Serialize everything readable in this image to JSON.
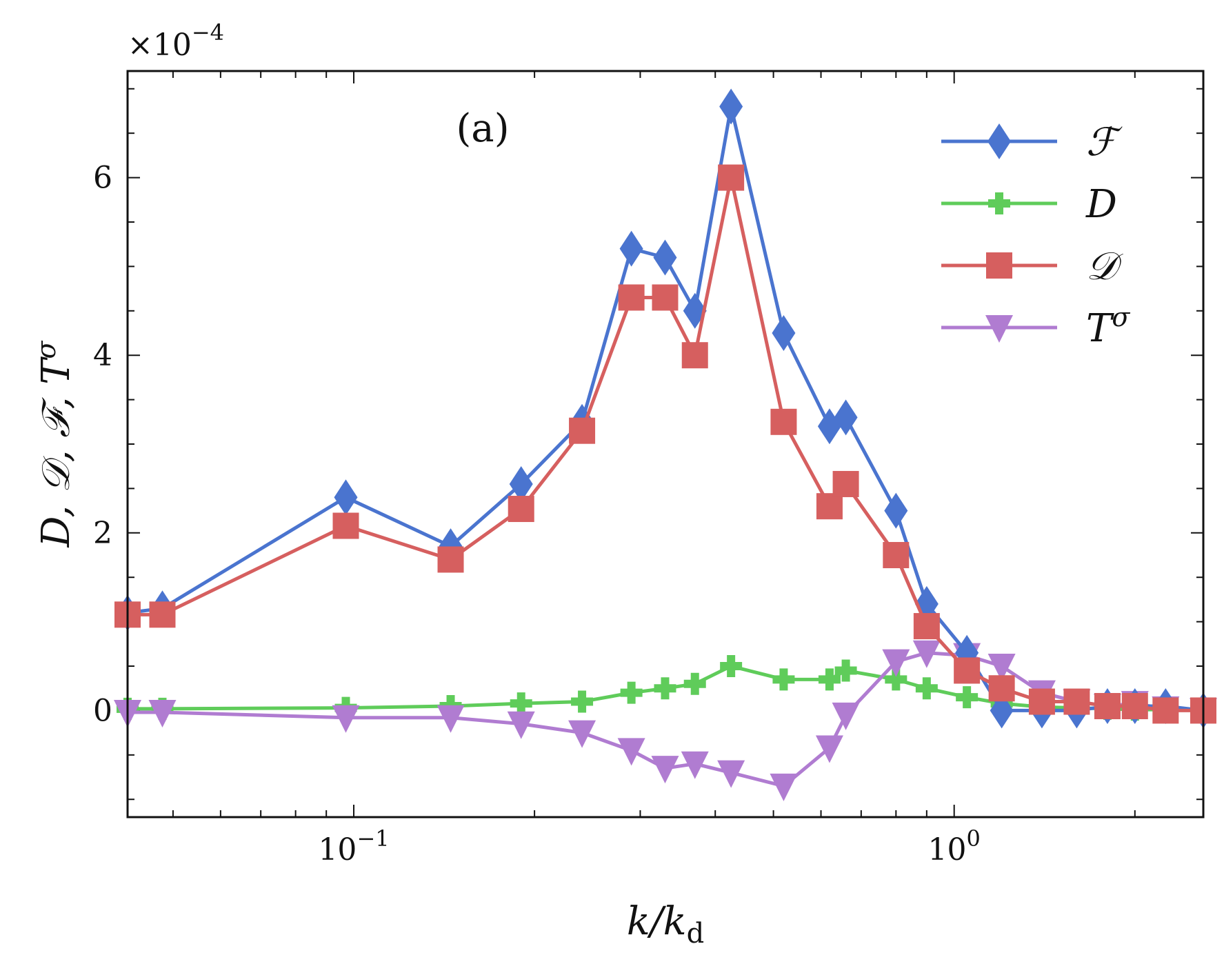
{
  "chart_data": {
    "type": "line",
    "panel_label": "(a)",
    "xscale": "log",
    "xlabel_main": "k/k",
    "xlabel_sub": "d",
    "ylabel": "D, 𝒟, ℱ, T",
    "ylabel_sup": "σ",
    "y_multiplier": {
      "base": "×10",
      "exp": "−4"
    },
    "xlim": [
      0.042,
      2.6
    ],
    "ylim": [
      -1.2,
      7.2
    ],
    "xticks": [
      {
        "value": 0.1,
        "base": "10",
        "exp": "−1"
      },
      {
        "value": 1.0,
        "base": "10",
        "exp": "0"
      }
    ],
    "yticks": [
      {
        "value": 0,
        "label": "0"
      },
      {
        "value": 2,
        "label": "2"
      },
      {
        "value": 4,
        "label": "4"
      },
      {
        "value": 6,
        "label": "6"
      }
    ],
    "legend_position": "top-right",
    "series": [
      {
        "name": "ℱ",
        "color": "#4a74cf",
        "marker": "diamond",
        "x": [
          0.042,
          0.048,
          0.097,
          0.145,
          0.19,
          0.24,
          0.29,
          0.33,
          0.37,
          0.425,
          0.52,
          0.62,
          0.66,
          0.8,
          0.9,
          1.05,
          1.2,
          1.4,
          1.6,
          1.8,
          2.0,
          2.25,
          2.6
        ],
        "values": [
          1.1,
          1.15,
          2.4,
          1.85,
          2.55,
          3.25,
          5.2,
          5.1,
          4.5,
          6.8,
          4.25,
          3.2,
          3.3,
          2.25,
          1.2,
          0.65,
          0.0,
          0.0,
          0.0,
          0.05,
          0.05,
          0.05,
          0.0
        ]
      },
      {
        "name": "D",
        "color": "#5fcc5a",
        "marker": "plus",
        "x": [
          0.042,
          0.048,
          0.097,
          0.145,
          0.19,
          0.24,
          0.29,
          0.33,
          0.37,
          0.425,
          0.52,
          0.62,
          0.66,
          0.8,
          0.9,
          1.05,
          1.2,
          1.4,
          1.6,
          1.8,
          2.0,
          2.25,
          2.6
        ],
        "values": [
          0.02,
          0.02,
          0.03,
          0.05,
          0.08,
          0.1,
          0.2,
          0.25,
          0.3,
          0.5,
          0.35,
          0.35,
          0.45,
          0.35,
          0.25,
          0.15,
          0.08,
          0.04,
          0.03,
          0.02,
          0.01,
          0.01,
          0.01
        ]
      },
      {
        "name": "𝒟",
        "color": "#d65f5f",
        "marker": "square",
        "x": [
          0.042,
          0.048,
          0.097,
          0.145,
          0.19,
          0.24,
          0.29,
          0.33,
          0.37,
          0.425,
          0.52,
          0.62,
          0.66,
          0.8,
          0.9,
          1.05,
          1.2,
          1.4,
          1.6,
          1.8,
          2.0,
          2.25,
          2.6
        ],
        "values": [
          1.08,
          1.08,
          2.08,
          1.7,
          2.27,
          3.15,
          4.65,
          4.65,
          4.0,
          6.0,
          3.25,
          2.3,
          2.55,
          1.75,
          0.95,
          0.45,
          0.25,
          0.1,
          0.1,
          0.05,
          0.05,
          0.0,
          0.0
        ]
      },
      {
        "name": "T",
        "sup": "σ",
        "color": "#b07cd1",
        "marker": "triangle-down",
        "x": [
          0.042,
          0.048,
          0.097,
          0.145,
          0.19,
          0.24,
          0.29,
          0.33,
          0.37,
          0.425,
          0.52,
          0.62,
          0.66,
          0.8,
          0.9,
          1.05,
          1.2,
          1.4,
          1.6,
          1.8,
          2.0,
          2.25,
          2.6
        ],
        "values": [
          -0.02,
          -0.02,
          -0.08,
          -0.08,
          -0.15,
          -0.25,
          -0.45,
          -0.65,
          -0.6,
          -0.7,
          -0.85,
          -0.42,
          -0.05,
          0.55,
          0.65,
          0.62,
          0.5,
          0.2,
          0.1,
          0.05,
          0.08,
          0.02,
          0.0
        ]
      }
    ]
  }
}
